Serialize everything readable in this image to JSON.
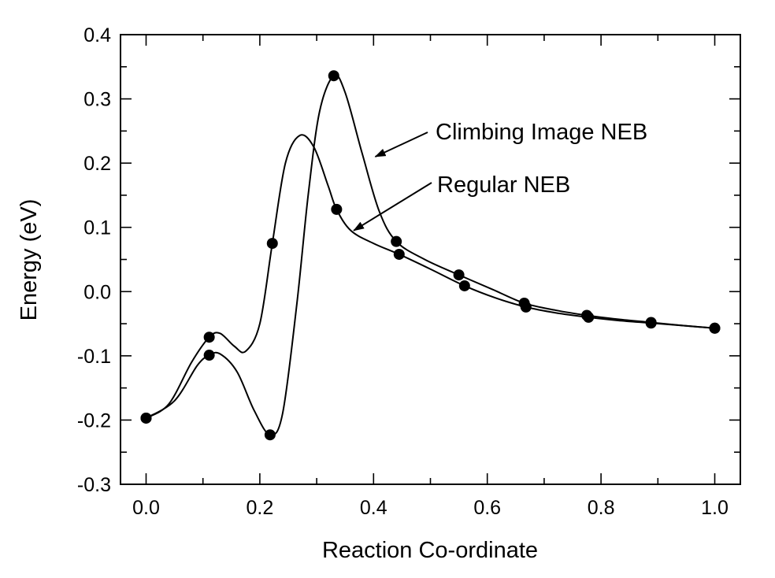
{
  "chart_data": {
    "type": "line",
    "xlabel": "Reaction Co-ordinate",
    "ylabel": "Energy  (eV)",
    "xlim": [
      -0.045,
      1.045
    ],
    "ylim": [
      -0.3,
      0.4
    ],
    "xticks": [
      0.0,
      0.2,
      0.4,
      0.6,
      0.8,
      1.0
    ],
    "xtick_labels": [
      "0.0",
      "0.2",
      "0.4",
      "0.6",
      "0.8",
      "1.0"
    ],
    "yticks": [
      -0.3,
      -0.2,
      -0.1,
      0.0,
      0.1,
      0.2,
      0.3,
      0.4
    ],
    "ytick_labels": [
      "-0.3",
      "-0.2",
      "-0.1",
      "0.0",
      "0.1",
      "0.2",
      "0.3",
      "0.4"
    ],
    "grid": false,
    "series": [
      {
        "name": "Climbing Image NEB",
        "points": [
          [
            0.0,
            -0.197
          ],
          [
            0.111,
            -0.099
          ],
          [
            0.218,
            -0.223
          ],
          [
            0.33,
            0.336
          ],
          [
            0.44,
            0.078
          ],
          [
            0.55,
            0.026
          ],
          [
            0.665,
            -0.018
          ],
          [
            0.775,
            -0.037
          ],
          [
            0.888,
            -0.048
          ],
          [
            1.0,
            -0.057
          ]
        ],
        "curve": [
          [
            0.0,
            -0.197
          ],
          [
            0.05,
            -0.17
          ],
          [
            0.09,
            -0.115
          ],
          [
            0.111,
            -0.099
          ],
          [
            0.13,
            -0.097
          ],
          [
            0.16,
            -0.125
          ],
          [
            0.19,
            -0.185
          ],
          [
            0.218,
            -0.223
          ],
          [
            0.24,
            -0.19
          ],
          [
            0.265,
            -0.02
          ],
          [
            0.285,
            0.15
          ],
          [
            0.305,
            0.28
          ],
          [
            0.33,
            0.336
          ],
          [
            0.35,
            0.31
          ],
          [
            0.38,
            0.215
          ],
          [
            0.41,
            0.125
          ],
          [
            0.44,
            0.078
          ],
          [
            0.49,
            0.05
          ],
          [
            0.55,
            0.026
          ],
          [
            0.61,
            0.003
          ],
          [
            0.665,
            -0.018
          ],
          [
            0.72,
            -0.029
          ],
          [
            0.775,
            -0.037
          ],
          [
            0.83,
            -0.043
          ],
          [
            0.888,
            -0.048
          ],
          [
            0.945,
            -0.053
          ],
          [
            1.0,
            -0.057
          ]
        ]
      },
      {
        "name": "Regular NEB",
        "points": [
          [
            0.0,
            -0.197
          ],
          [
            0.111,
            -0.071
          ],
          [
            0.222,
            0.075
          ],
          [
            0.335,
            0.128
          ],
          [
            0.445,
            0.058
          ],
          [
            0.56,
            0.009
          ],
          [
            0.668,
            -0.024
          ],
          [
            0.778,
            -0.04
          ],
          [
            0.888,
            -0.049
          ],
          [
            1.0,
            -0.057
          ]
        ],
        "curve": [
          [
            0.0,
            -0.197
          ],
          [
            0.04,
            -0.175
          ],
          [
            0.08,
            -0.11
          ],
          [
            0.111,
            -0.071
          ],
          [
            0.13,
            -0.065
          ],
          [
            0.155,
            -0.085
          ],
          [
            0.175,
            -0.093
          ],
          [
            0.2,
            -0.05
          ],
          [
            0.222,
            0.075
          ],
          [
            0.245,
            0.2
          ],
          [
            0.27,
            0.243
          ],
          [
            0.295,
            0.225
          ],
          [
            0.32,
            0.165
          ],
          [
            0.335,
            0.128
          ],
          [
            0.36,
            0.095
          ],
          [
            0.4,
            0.075
          ],
          [
            0.445,
            0.058
          ],
          [
            0.5,
            0.035
          ],
          [
            0.56,
            0.009
          ],
          [
            0.615,
            -0.01
          ],
          [
            0.668,
            -0.024
          ],
          [
            0.72,
            -0.033
          ],
          [
            0.778,
            -0.04
          ],
          [
            0.83,
            -0.045
          ],
          [
            0.888,
            -0.049
          ],
          [
            0.945,
            -0.053
          ],
          [
            1.0,
            -0.057
          ]
        ]
      }
    ],
    "annotations": [
      {
        "text": "Climbing Image NEB",
        "target": [
          0.403,
          0.21
        ]
      },
      {
        "text": "Regular NEB",
        "target": [
          0.365,
          0.095
        ]
      }
    ]
  }
}
